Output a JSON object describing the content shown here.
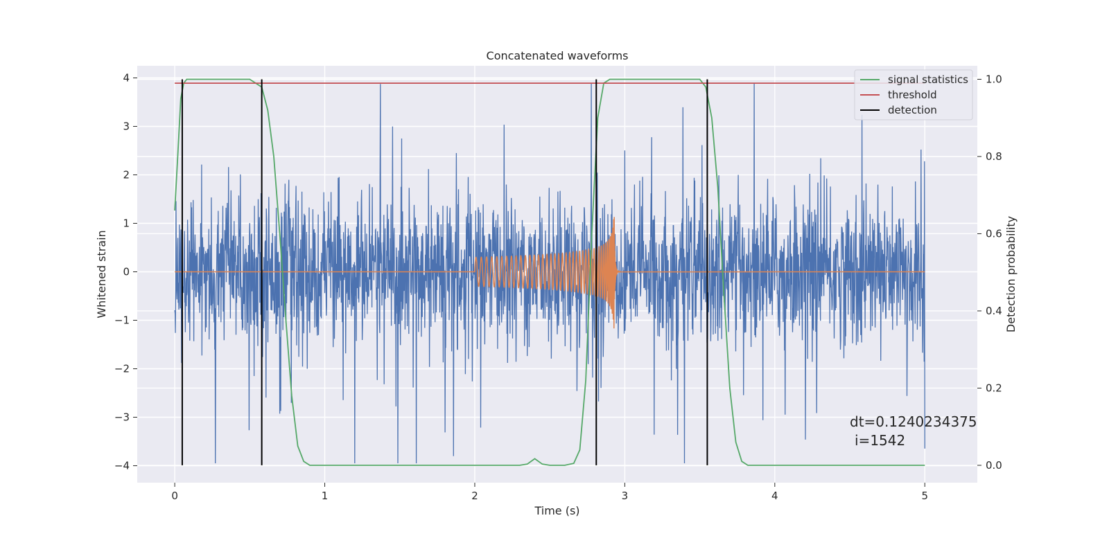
{
  "chart_data": {
    "type": "line",
    "title": "Concatenated waveforms",
    "xlabel": "Time (s)",
    "ylabel_left": "Whitened strain",
    "ylabel_right": "Detection probability",
    "xlim": [
      -0.25,
      5.35
    ],
    "ylim_left": [
      -4.35,
      4.25
    ],
    "ylim_right": [
      -0.045,
      1.035
    ],
    "xticks": [
      0,
      1,
      2,
      3,
      4,
      5
    ],
    "xtick_labels": [
      "0",
      "1",
      "2",
      "3",
      "4",
      "5"
    ],
    "yticks_left": [
      -4,
      -3,
      -2,
      -1,
      0,
      1,
      2,
      3,
      4
    ],
    "ytick_labels_left": [
      "−4",
      "−3",
      "−2",
      "−1",
      "0",
      "1",
      "2",
      "3",
      "4"
    ],
    "yticks_right": [
      0.0,
      0.2,
      0.4,
      0.6,
      0.8,
      1.0
    ],
    "ytick_labels_right": [
      "0.0",
      "0.2",
      "0.4",
      "0.6",
      "0.8",
      "1.0"
    ],
    "grid": true,
    "legend_position": "top-right",
    "legend": [
      {
        "label": "signal statistics",
        "color": "#55a868"
      },
      {
        "label": "threshold",
        "color": "#c44e52"
      },
      {
        "label": "detection",
        "color": "#000000"
      }
    ],
    "series": [
      {
        "name": "whitened strain (noise)",
        "axis": "left",
        "color": "#4c72b0",
        "x_range": [
          0,
          5
        ],
        "typical_amplitude": 0.7,
        "peak_max": 3.9,
        "peak_min": -3.95
      },
      {
        "name": "injected waveform",
        "axis": "left",
        "color": "#dd8452",
        "x_range": [
          2.0,
          2.97
        ],
        "start_amplitude": 0.3,
        "peak_max": 2.75,
        "peak_min": -2.0,
        "merger_time": 2.93
      },
      {
        "name": "signal statistics",
        "axis": "right",
        "color": "#55a868",
        "x": [
          0,
          0.02,
          0.04,
          0.06,
          0.08,
          0.1,
          0.5,
          0.58,
          0.62,
          0.66,
          0.7,
          0.74,
          0.78,
          0.82,
          0.86,
          0.9,
          2.3,
          2.35,
          2.4,
          2.45,
          2.5,
          2.6,
          2.66,
          2.7,
          2.74,
          2.78,
          2.82,
          2.86,
          2.9,
          3.5,
          3.54,
          3.58,
          3.62,
          3.66,
          3.7,
          3.74,
          3.78,
          3.82,
          5.0
        ],
        "y": [
          0.66,
          0.8,
          0.95,
          0.99,
          1.0,
          1.0,
          1.0,
          0.98,
          0.92,
          0.8,
          0.6,
          0.38,
          0.18,
          0.05,
          0.01,
          0.0,
          0.0,
          0.003,
          0.017,
          0.003,
          0.0,
          0.0,
          0.005,
          0.04,
          0.22,
          0.6,
          0.9,
          0.99,
          1.0,
          1.0,
          0.98,
          0.9,
          0.72,
          0.45,
          0.2,
          0.06,
          0.01,
          0.0,
          0.0
        ]
      },
      {
        "name": "threshold",
        "axis": "right",
        "color": "#c44e52",
        "x": [
          0,
          5
        ],
        "y": [
          0.99,
          0.99
        ]
      }
    ],
    "detections": [
      0.05,
      0.58,
      2.81,
      3.55
    ],
    "detection_color": "#000000",
    "annotation": {
      "line1": "dt=0.1240234375",
      "line2": "i=1542"
    },
    "colors": {
      "background": "#eaeaf2",
      "grid": "#ffffff",
      "text": "#262626"
    }
  }
}
